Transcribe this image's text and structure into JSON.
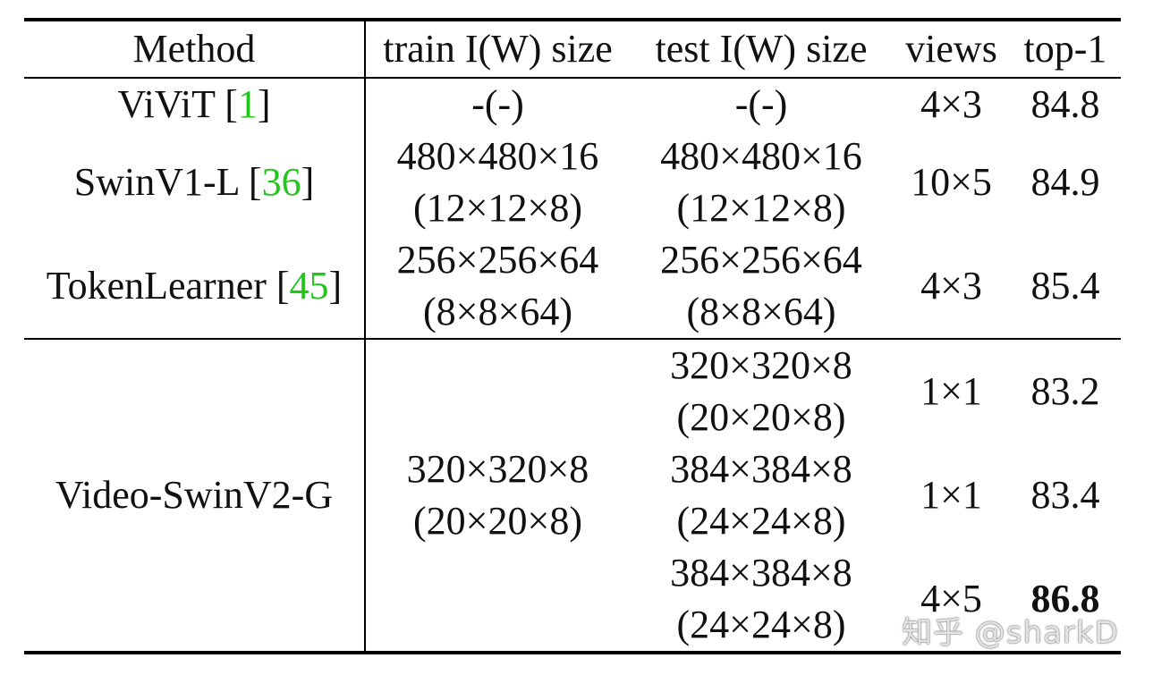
{
  "table": {
    "headers": [
      "Method",
      "train I(W) size",
      "test I(W) size",
      "views",
      "top-1"
    ],
    "rows": [
      {
        "method": "ViViT",
        "cite": "1",
        "train": "-(-)",
        "test": "-(-)",
        "views": "4×3",
        "top1": "84.8"
      },
      {
        "method": "SwinV1-L",
        "cite": "36",
        "train_l1": "480×480×16",
        "train_l2": "(12×12×8)",
        "test_l1": "480×480×16",
        "test_l2": "(12×12×8)",
        "views": "10×5",
        "top1": "84.9"
      },
      {
        "method": "TokenLearner",
        "cite": "45",
        "train_l1": "256×256×64",
        "train_l2": "(8×8×64)",
        "test_l1": "256×256×64",
        "test_l2": "(8×8×64)",
        "views": "4×3",
        "top1": "85.4"
      }
    ],
    "ours": {
      "method": "Video-SwinV2-G",
      "train_l1": "320×320×8",
      "train_l2": "(20×20×8)",
      "sub": [
        {
          "test_l1": "320×320×8",
          "test_l2": "(20×20×8)",
          "views": "1×1",
          "top1": "83.2"
        },
        {
          "test_l1": "384×384×8",
          "test_l2": "(24×24×8)",
          "views": "1×1",
          "top1": "83.4"
        },
        {
          "test_l1": "384×384×8",
          "test_l2": "(24×24×8)",
          "views": "4×5",
          "top1": "86.8"
        }
      ]
    }
  },
  "watermark": "知乎 @sharkD"
}
